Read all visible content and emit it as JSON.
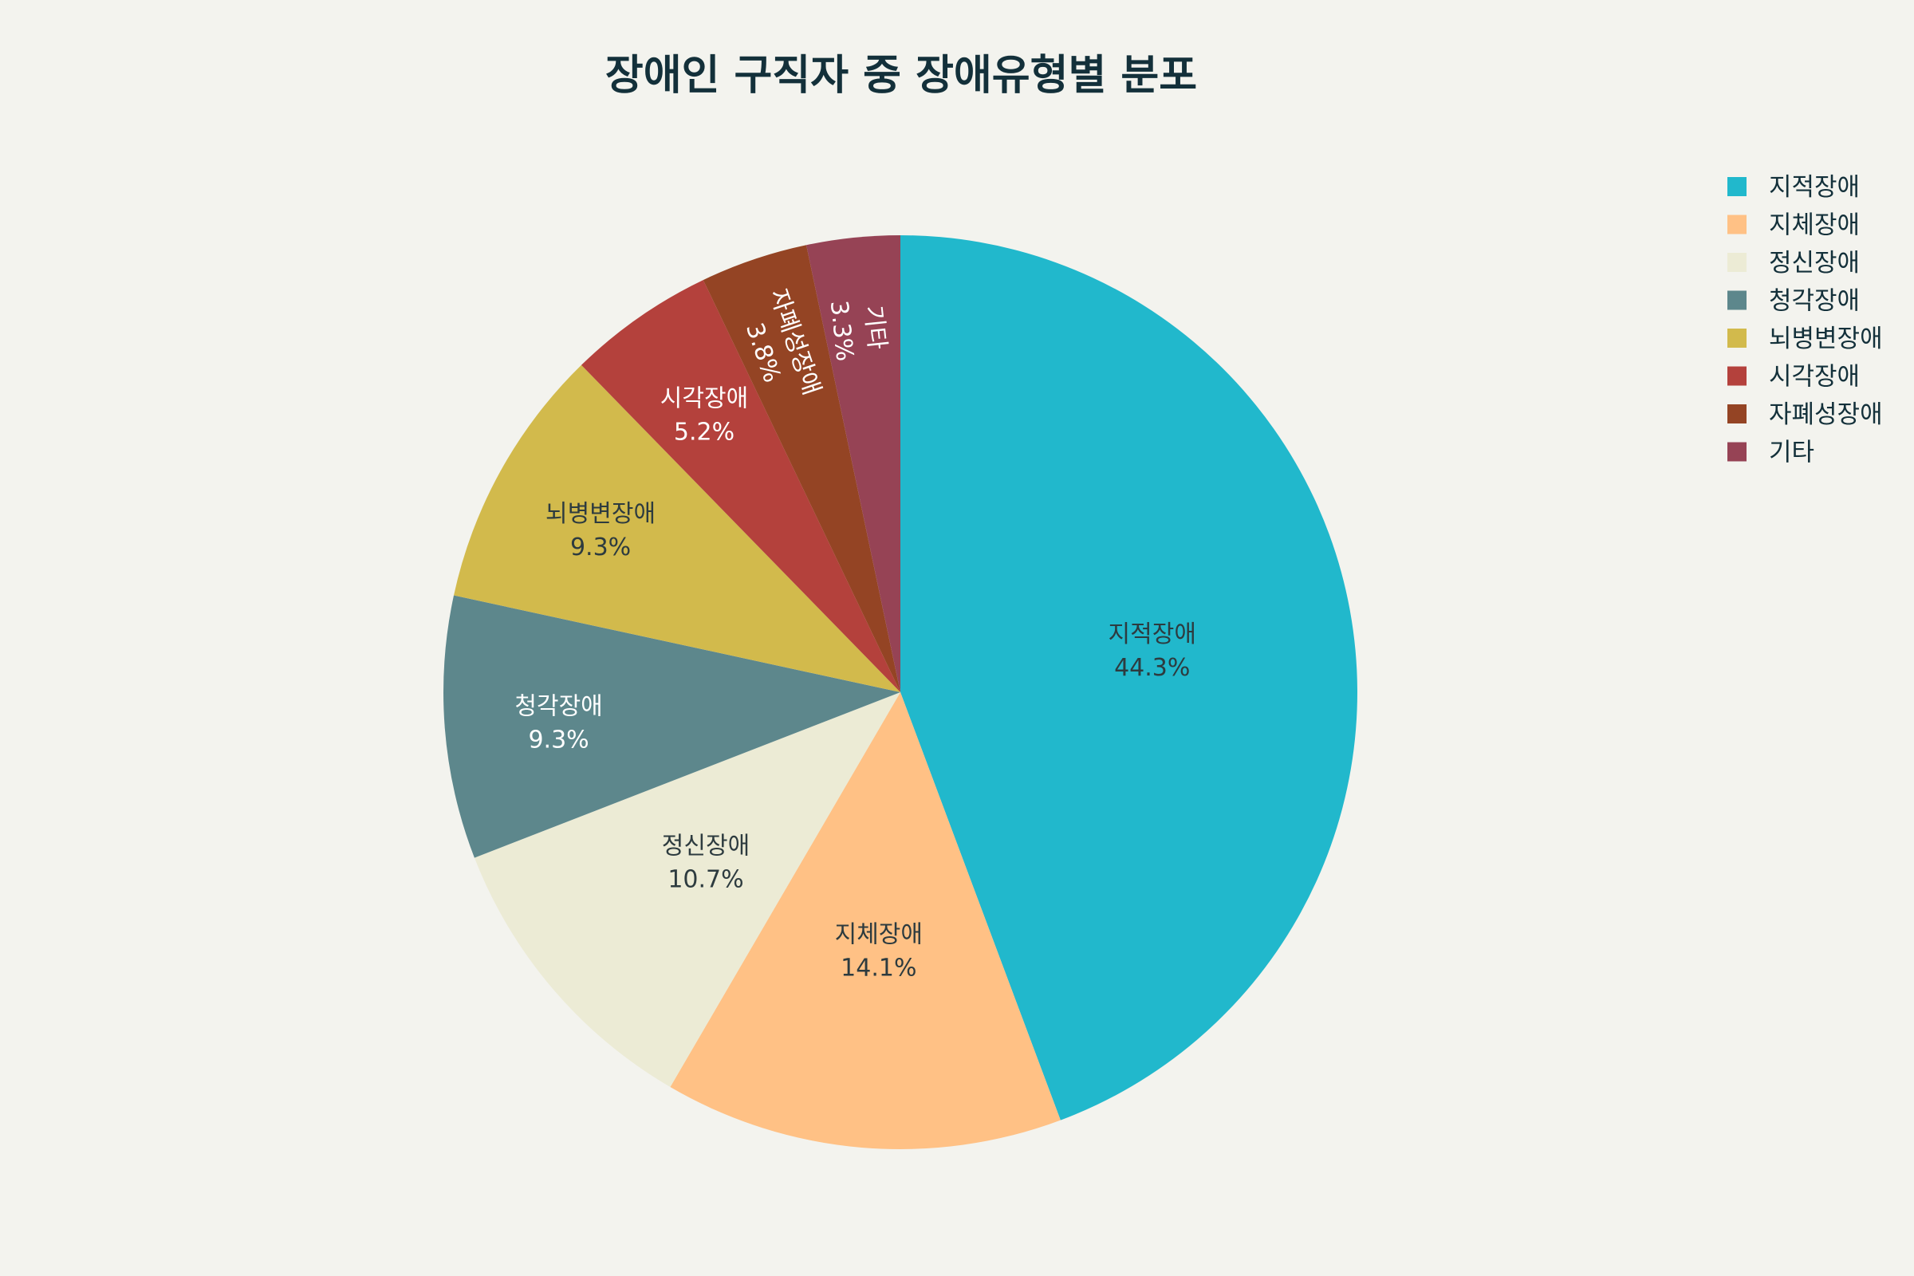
{
  "chart_data": {
    "type": "pie",
    "title": "장애인 구직자 중 장애유형별 분포",
    "unit": "%",
    "legend_position": "top-right",
    "slices": [
      {
        "label": "지적장애",
        "value": 44.3,
        "display": "44.3%",
        "color": "#21b8cc",
        "text_color": "#2d3b3f"
      },
      {
        "label": "지체장애",
        "value": 14.1,
        "display": "14.1%",
        "color": "#ffc185",
        "text_color": "#2d3b3f"
      },
      {
        "label": "정신장애",
        "value": 10.7,
        "display": "10.7%",
        "color": "#ecebd5",
        "text_color": "#2d3b3f"
      },
      {
        "label": "청각장애",
        "value": 9.3,
        "display": "9.3%",
        "color": "#5d878c",
        "text_color": "#ffffff"
      },
      {
        "label": "뇌병변장애",
        "value": 9.3,
        "display": "9.3%",
        "color": "#d2ba4c",
        "text_color": "#2d3b3f"
      },
      {
        "label": "시각장애",
        "value": 5.2,
        "display": "5.2%",
        "color": "#b4413c",
        "text_color": "#ffffff"
      },
      {
        "label": "자폐성장애",
        "value": 3.8,
        "display": "3.8%",
        "color": "#944424",
        "text_color": "#ffffff"
      },
      {
        "label": "기타",
        "value": 3.3,
        "display": "3.3%",
        "color": "#964355",
        "text_color": "#ffffff"
      }
    ]
  }
}
